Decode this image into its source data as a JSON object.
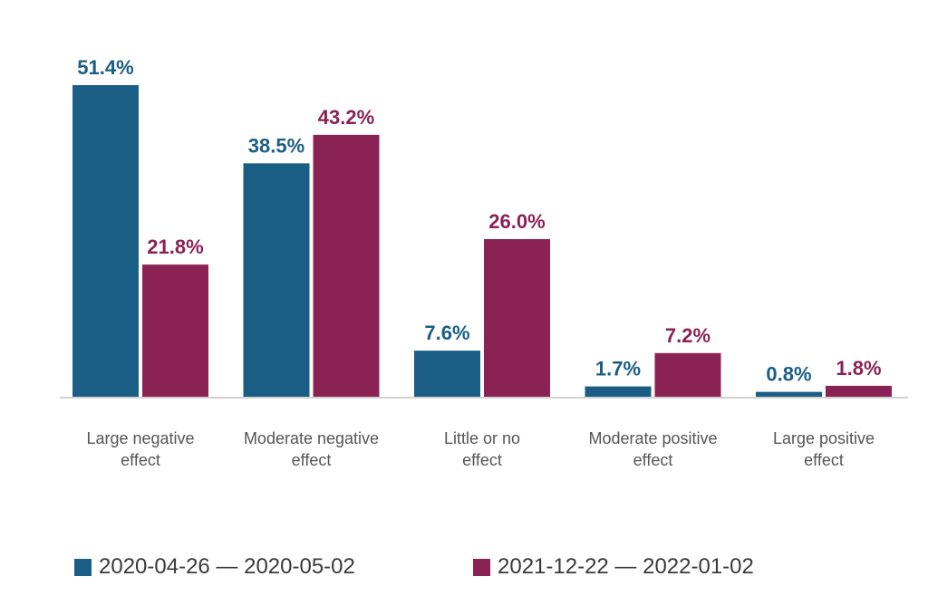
{
  "chart_data": {
    "type": "bar",
    "categories": [
      [
        "Large negative",
        "effect"
      ],
      [
        "Moderate negative",
        "effect"
      ],
      [
        "Little or no",
        "effect"
      ],
      [
        "Moderate positive",
        "effect"
      ],
      [
        "Large positive",
        "effect"
      ]
    ],
    "series": [
      {
        "name": "2020-04-26 — 2020-05-02",
        "values": [
          51.4,
          38.5,
          7.6,
          1.7,
          0.8
        ],
        "labels": [
          "51.4%",
          "38.5%",
          "7.6%",
          "1.7%",
          "0.8%"
        ],
        "color": "#1a5e86"
      },
      {
        "name": "2021-12-22 — 2022-01-02",
        "values": [
          21.8,
          43.2,
          26.0,
          7.2,
          1.8
        ],
        "labels": [
          "21.8%",
          "43.2%",
          "26.0%",
          "7.2%",
          "1.8%"
        ],
        "color": "#8a2254"
      }
    ],
    "ylim": [
      0,
      51.4
    ],
    "grid": false,
    "legend_position": "bottom"
  },
  "legend": {
    "series_1_label": "2020-04-26 — 2020-05-02",
    "series_2_label": "2021-12-22 — 2022-01-02"
  }
}
